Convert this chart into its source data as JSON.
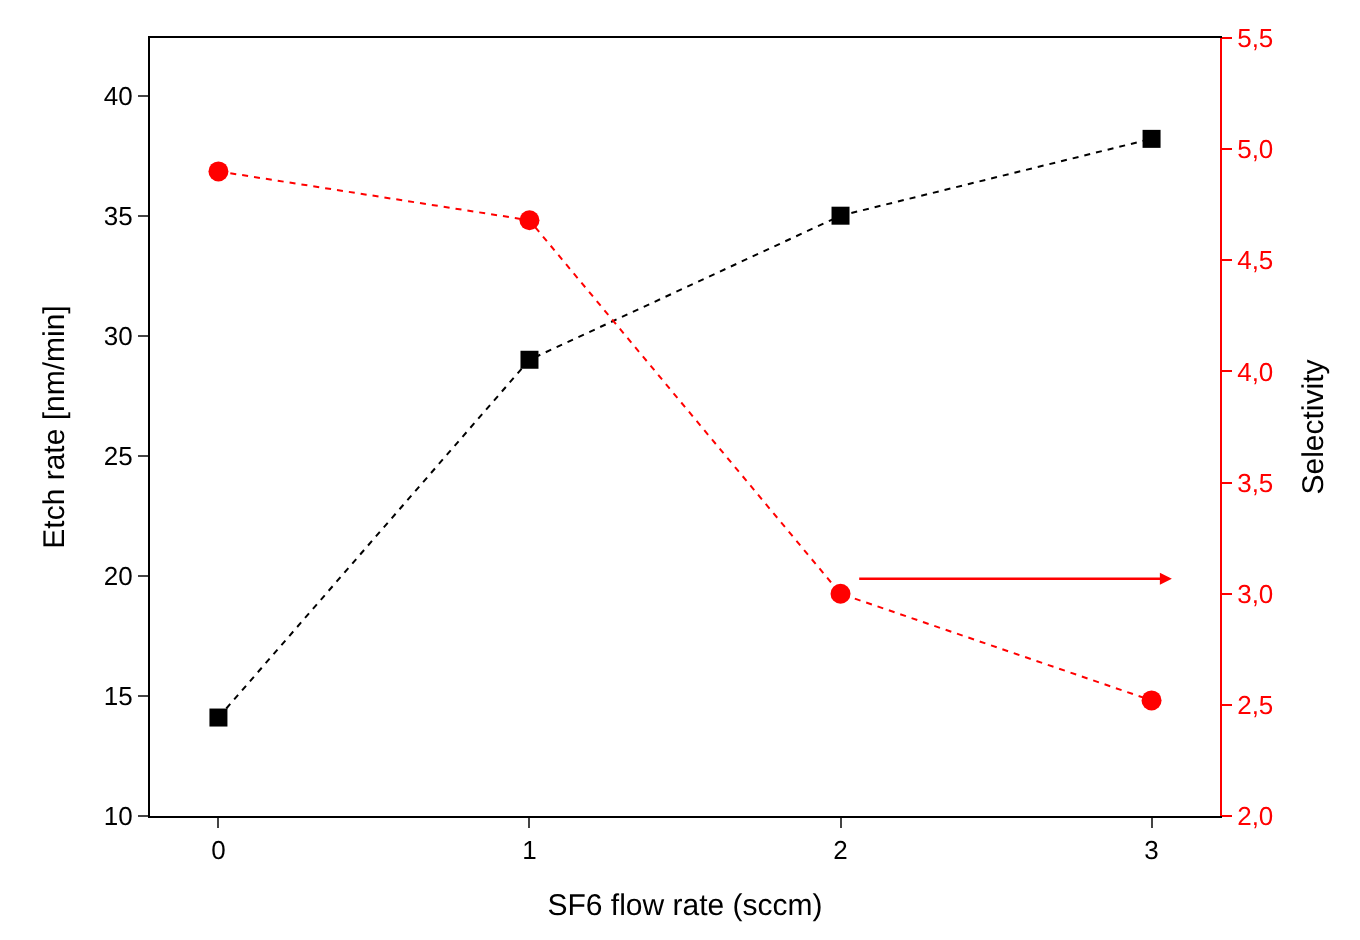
{
  "chart_data": {
    "type": "line",
    "xlabel": "SF6 flow rate (sccm)",
    "ylabel": "Etch rate [nm/min]",
    "y2label": "Selectivity",
    "x": [
      0,
      1,
      2,
      3
    ],
    "series": [
      {
        "color": "#000000",
        "values": [
          14.1,
          29.0,
          35.0,
          38.2
        ],
        "marker": "square",
        "line_style": "dotted"
      },
      {
        "color": "#ff0000",
        "values": [
          4.9,
          4.68,
          3.0,
          2.52
        ],
        "axis": "y2",
        "marker": "circle",
        "line_style": "dotted"
      }
    ],
    "xlim": [
      -0.22,
      3.22
    ],
    "xticks": [
      0,
      1,
      2,
      3
    ],
    "ylim": [
      10,
      42.4
    ],
    "yticks": [
      10,
      15,
      20,
      25,
      30,
      35,
      40
    ],
    "y2lim": [
      2.0,
      5.5
    ],
    "y2ticks": [
      {
        "value": 2.0,
        "label": "2,0"
      },
      {
        "value": 2.5,
        "label": "2,5"
      },
      {
        "value": 3.0,
        "label": "3,0"
      },
      {
        "value": 3.5,
        "label": "3,5"
      },
      {
        "value": 4.0,
        "label": "4,0"
      },
      {
        "value": 4.5,
        "label": "4,5"
      },
      {
        "value": 5.0,
        "label": "5,0"
      },
      {
        "value": 5.5,
        "label": "5,5"
      }
    ],
    "legend": false
  }
}
